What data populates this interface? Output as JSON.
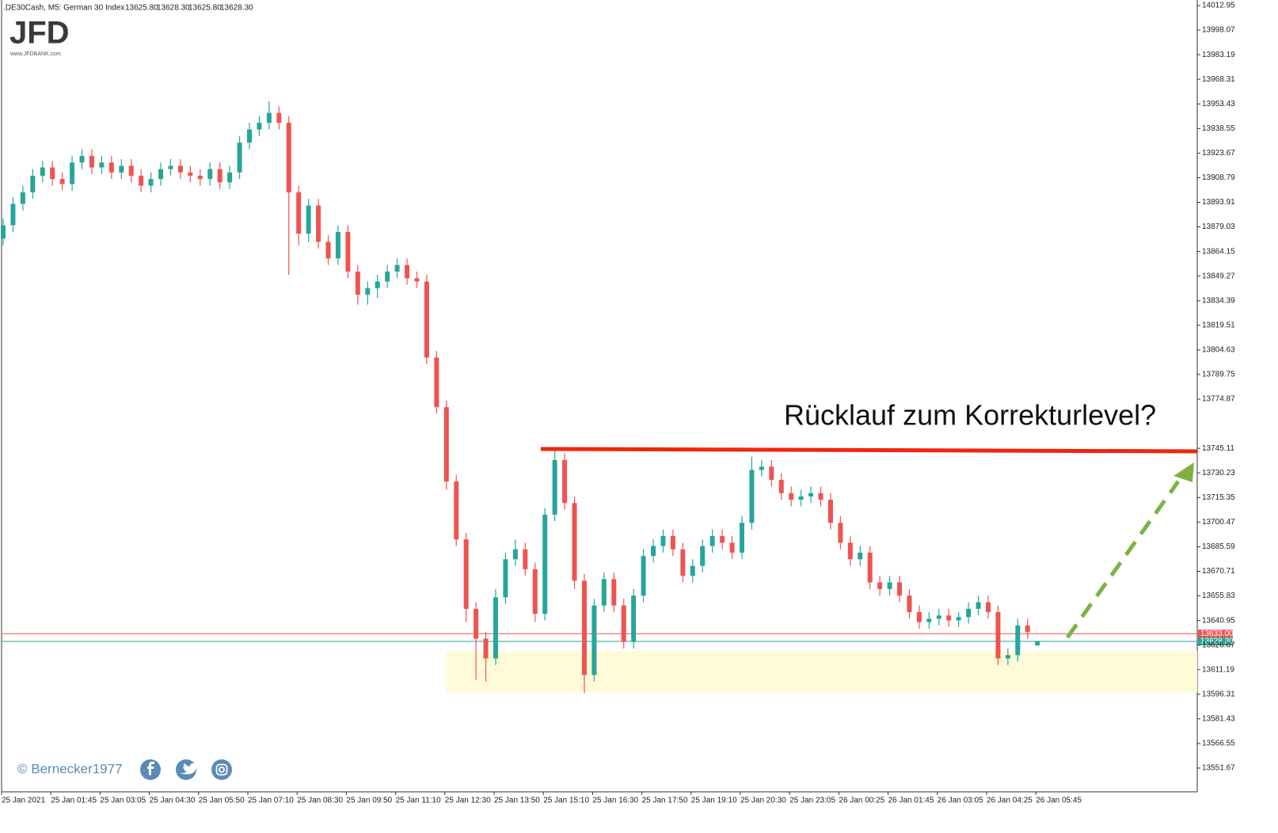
{
  "chart_data": {
    "type": "candlestick",
    "header": ".DE30Cash, M5:  German 30 Index",
    "last_ohlc": [
      {
        "value": 13625.8,
        "label": "13625.80"
      },
      {
        "value": 13628.3,
        "label": "13628.30"
      },
      {
        "value": 13625.8,
        "label": "13625.80"
      },
      {
        "value": 13628.3,
        "label": "13628.30"
      }
    ],
    "logo": "JFD",
    "logo_url": "www.JFDBANK.com",
    "copyright": "© Bernecker1977",
    "annotation": "Rücklauf zum Korrekturlevel?",
    "up_color": "#26a69a",
    "down_color": "#ef5350",
    "categories": [
      "25 Jan 2021",
      null,
      null,
      null,
      null,
      "25 Jan 01:45",
      null,
      null,
      null,
      null,
      "25 Jan 03:05",
      null,
      null,
      null,
      null,
      "25 Jan 04:30",
      null,
      null,
      null,
      null,
      "25 Jan 05:50",
      null,
      null,
      null,
      null,
      "25 Jan 07:10",
      null,
      null,
      null,
      null,
      "25 Jan 08:30",
      null,
      null,
      null,
      null,
      "25 Jan 09:50",
      null,
      null,
      null,
      null,
      "25 Jan 11:10",
      null,
      null,
      null,
      null,
      "25 Jan 12:30",
      null,
      null,
      null,
      null,
      "25 Jan 13:50",
      null,
      null,
      null,
      null,
      "25 Jan 15:10",
      null,
      null,
      null,
      null,
      "25 Jan 16:30",
      null,
      null,
      null,
      null,
      "25 Jan 17:50",
      null,
      null,
      null,
      null,
      "25 Jan 19:10",
      null,
      null,
      null,
      null,
      "25 Jan 20:30",
      null,
      null,
      null,
      null,
      "25 Jan 23:05",
      null,
      null,
      null,
      null,
      "26 Jan 00:25",
      null,
      null,
      null,
      null,
      "26 Jan 01:45",
      null,
      null,
      null,
      null,
      "26 Jan 03:05",
      null,
      null,
      null,
      null,
      "26 Jan 04:25",
      null,
      null,
      null,
      null,
      "26 Jan 05:45"
    ],
    "open": [
      13872,
      13880,
      13893,
      13900,
      13910,
      13915,
      13908,
      13905,
      13918,
      13922,
      13915,
      13918,
      13912,
      13916,
      13910,
      13904,
      13908,
      13914,
      13916,
      13912,
      13910,
      13908,
      13914,
      13906,
      13912,
      13930,
      13938,
      13942,
      13948,
      13942,
      13900,
      13875,
      13892,
      13870,
      13860,
      13876,
      13852,
      13838,
      13842,
      13846,
      13852,
      13856,
      13848,
      13846,
      13800,
      13770,
      13725,
      13690,
      13648,
      13630,
      13618,
      13655,
      13678,
      13684,
      13672,
      13645,
      13705,
      13738,
      13712,
      13665,
      13608,
      13650,
      13666,
      13650,
      13628,
      13656,
      13680,
      13686,
      13692,
      13684,
      13668,
      13674,
      13686,
      13692,
      13688,
      13682,
      13700,
      13732,
      13734,
      13726,
      13718,
      13714,
      13716,
      13718,
      13714,
      13700,
      13688,
      13678,
      13682,
      13664,
      13660,
      13664,
      13656,
      13646,
      13640,
      13642,
      13644,
      13641,
      13643,
      13648,
      13652,
      13646,
      13618,
      13620,
      13638,
      13625.8
    ],
    "high": [
      13884,
      13897,
      13904,
      13914,
      13919,
      13919,
      13912,
      13922,
      13926,
      13926,
      13922,
      13922,
      13920,
      13920,
      13914,
      13912,
      13918,
      13920,
      13920,
      13916,
      13914,
      13918,
      13918,
      13916,
      13934,
      13942,
      13946,
      13955,
      13952,
      13946,
      13904,
      13896,
      13896,
      13874,
      13880,
      13880,
      13856,
      13846,
      13850,
      13856,
      13860,
      13860,
      13852,
      13850,
      13804,
      13774,
      13729,
      13694,
      13652,
      13634,
      13660,
      13682,
      13690,
      13688,
      13676,
      13709,
      13745,
      13742,
      13716,
      13669,
      13654,
      13670,
      13670,
      13654,
      13660,
      13684,
      13690,
      13696,
      13696,
      13688,
      13678,
      13690,
      13696,
      13696,
      13692,
      13704,
      13740,
      13738,
      13738,
      13730,
      13722,
      13720,
      13722,
      13722,
      13718,
      13704,
      13692,
      13686,
      13686,
      13668,
      13668,
      13668,
      13660,
      13650,
      13646,
      13648,
      13648,
      13646,
      13652,
      13656,
      13656,
      13650,
      13624,
      13642,
      13642,
      13628.3
    ],
    "low": [
      13868,
      13876,
      13889,
      13896,
      13906,
      13904,
      13901,
      13901,
      13914,
      13911,
      13911,
      13908,
      13908,
      13906,
      13900,
      13900,
      13904,
      13910,
      13908,
      13906,
      13904,
      13904,
      13902,
      13902,
      13908,
      13926,
      13934,
      13938,
      13938,
      13850,
      13868,
      13870,
      13866,
      13856,
      13856,
      13848,
      13832,
      13832,
      13836,
      13842,
      13848,
      13844,
      13842,
      13796,
      13766,
      13720,
      13686,
      13640,
      13605,
      13604,
      13614,
      13651,
      13674,
      13668,
      13640,
      13641,
      13701,
      13708,
      13660,
      13597,
      13604,
      13646,
      13646,
      13624,
      13624,
      13652,
      13676,
      13682,
      13680,
      13664,
      13664,
      13670,
      13682,
      13684,
      13678,
      13678,
      13696,
      13728,
      13722,
      13714,
      13710,
      13710,
      13712,
      13710,
      13696,
      13684,
      13674,
      13674,
      13660,
      13656,
      13656,
      13652,
      13642,
      13636,
      13636,
      13638,
      13637,
      13637,
      13639,
      13644,
      13642,
      13614,
      13614,
      13616,
      13630,
      13625.8
    ],
    "close": [
      13880,
      13893,
      13900,
      13910,
      13915,
      13908,
      13905,
      13918,
      13922,
      13915,
      13918,
      13912,
      13916,
      13910,
      13904,
      13908,
      13914,
      13916,
      13912,
      13910,
      13908,
      13914,
      13906,
      13912,
      13930,
      13938,
      13942,
      13948,
      13942,
      13900,
      13875,
      13892,
      13870,
      13860,
      13876,
      13852,
      13838,
      13842,
      13846,
      13852,
      13856,
      13848,
      13846,
      13800,
      13770,
      13725,
      13690,
      13648,
      13630,
      13618,
      13655,
      13678,
      13684,
      13672,
      13645,
      13705,
      13738,
      13712,
      13665,
      13608,
      13650,
      13666,
      13650,
      13628,
      13656,
      13680,
      13686,
      13692,
      13684,
      13668,
      13674,
      13686,
      13692,
      13688,
      13682,
      13700,
      13732,
      13734,
      13726,
      13718,
      13714,
      13716,
      13718,
      13714,
      13700,
      13688,
      13678,
      13682,
      13664,
      13660,
      13664,
      13656,
      13646,
      13640,
      13642,
      13644,
      13641,
      13643,
      13648,
      13652,
      13646,
      13618,
      13620,
      13638,
      13634,
      13628.3
    ],
    "ylim": [
      13537.3,
      14016.3
    ],
    "yticks": [
      14012.95,
      13998.07,
      13983.19,
      13968.31,
      13953.43,
      13938.55,
      13923.67,
      13908.79,
      13893.91,
      13879.03,
      13864.15,
      13849.27,
      13834.39,
      13819.51,
      13804.63,
      13789.75,
      13774.87,
      13745.11,
      13730.23,
      13715.35,
      13700.47,
      13685.59,
      13670.71,
      13655.83,
      13640.95,
      13626.07,
      13611.19,
      13596.31,
      13581.43,
      13566.55,
      13551.67
    ],
    "price_lines": [
      {
        "value": 13633,
        "label": "13633.00",
        "color": "#ef5350"
      },
      {
        "value": 13628.3,
        "label": "13628.30",
        "color": "#26a69a"
      }
    ],
    "resistance": {
      "value": 13744,
      "color": "#f0260c"
    },
    "support_zone": {
      "range": [
        13597.5,
        13622.5
      ],
      "color": "#fffbd9"
    },
    "arrow_color": "#7cb342",
    "brand_color": "#5b8ab5"
  }
}
